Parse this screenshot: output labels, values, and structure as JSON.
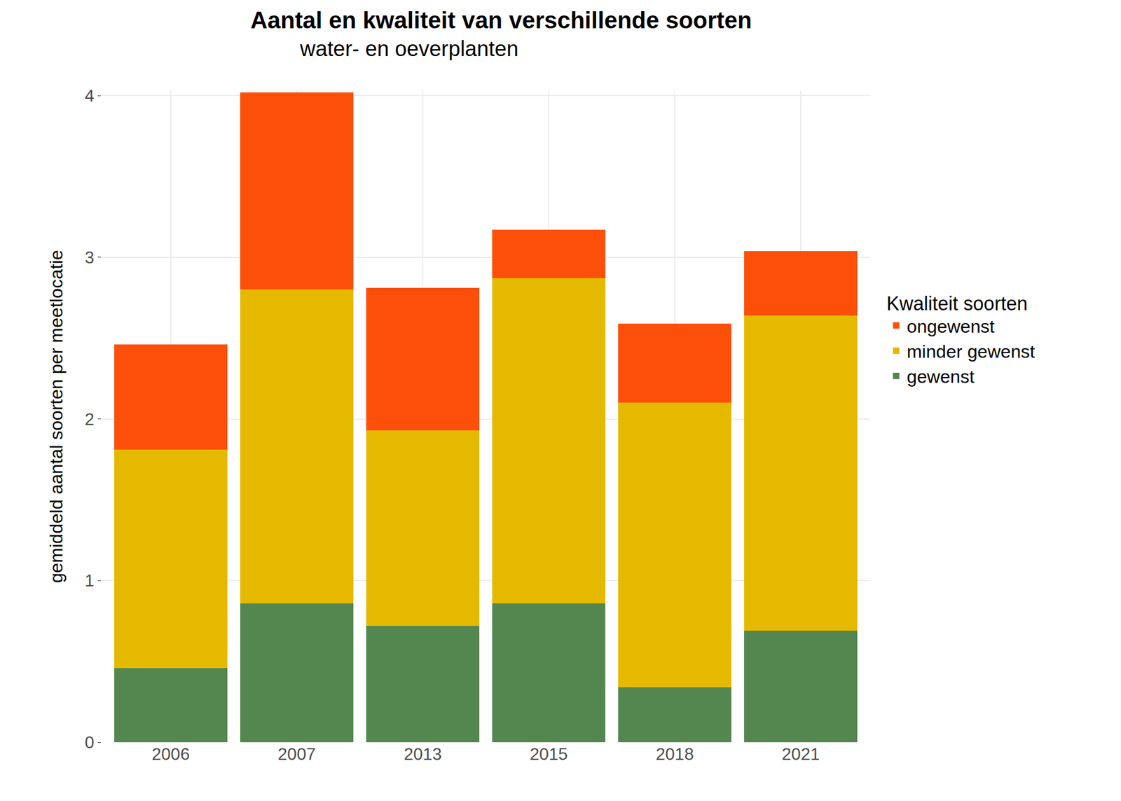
{
  "chart_data": {
    "type": "bar",
    "title": "Aantal en kwaliteit van verschillende soorten",
    "subtitle": "water- en oeverplanten",
    "y_label": "gemiddeld aantal soorten per meetlocatie",
    "legend_title": "Kwaliteit soorten",
    "categories": [
      "2006",
      "2007",
      "2013",
      "2015",
      "2018",
      "2021"
    ],
    "series": [
      {
        "name": "gewenst",
        "color": "#53874F",
        "values": [
          0.46,
          0.86,
          0.72,
          0.86,
          0.34,
          0.69
        ]
      },
      {
        "name": "minder gewenst",
        "color": "#E5B900",
        "values": [
          1.35,
          1.94,
          1.21,
          2.01,
          1.76,
          1.95
        ]
      },
      {
        "name": "ongewenst",
        "color": "#FC500A",
        "values": [
          0.65,
          1.22,
          0.88,
          0.3,
          0.49,
          0.4
        ]
      }
    ],
    "stacked": true,
    "ylim": [
      0,
      4.03
    ],
    "yticks": [
      0,
      1,
      2,
      3,
      4
    ],
    "grid": true,
    "legend": "right"
  }
}
